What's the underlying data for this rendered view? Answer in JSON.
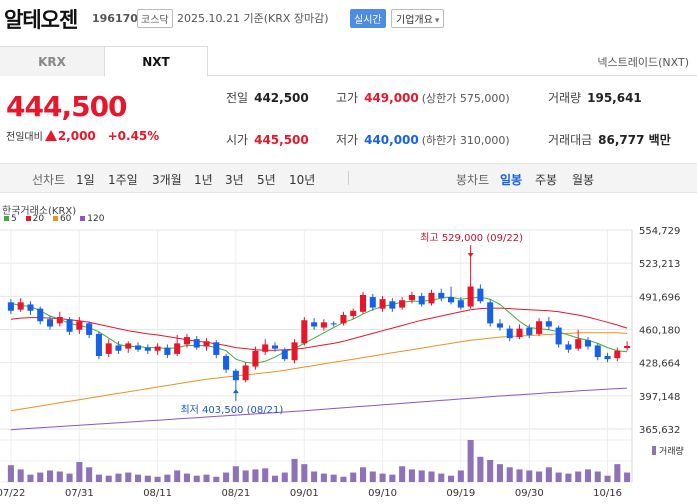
{
  "header": {
    "name": "알테오젠",
    "code": "196170",
    "market": "코스닥",
    "date_text": "2025.10.21 기준(KRX 장마감)",
    "realtime": "실시간",
    "company_info": "기업개요"
  },
  "tabs": {
    "krx": "KRX",
    "nxt": "NXT",
    "nxt_link": "넥스트레이드(NXT)"
  },
  "price": {
    "current": "444,500",
    "prev_label": "전일대비",
    "change": "2,000",
    "change_pct": "+0.45%"
  },
  "stats": {
    "prev": {
      "label": "전일",
      "value": "442,500"
    },
    "high": {
      "label": "고가",
      "value": "449,000",
      "note": "(상한가 575,000)"
    },
    "volume": {
      "label": "거래량",
      "value": "195,641"
    },
    "open": {
      "label": "시가",
      "value": "445,500"
    },
    "low": {
      "label": "저가",
      "value": "440,000",
      "note": "(하한가 310,000)"
    },
    "amount": {
      "label": "거래대금",
      "value": "86,777 백만"
    }
  },
  "period_bar": {
    "left_label": "선차트",
    "left_items": [
      "1일",
      "1주일",
      "3개월",
      "1년",
      "3년",
      "5년",
      "10년"
    ],
    "right_label": "봉차트",
    "right_items": [
      "일봉",
      "주봉",
      "월봉"
    ],
    "active": "일봉"
  },
  "colors": {
    "up": "#e8162b",
    "down": "#1761e6",
    "ma5": "#3fae3f",
    "ma20": "#e8162b",
    "ma60": "#f0901e",
    "ma120": "#8e54c4",
    "volume": "#8e72b8"
  },
  "chart_data": {
    "type": "candlestick",
    "title": "한국거래소(KRX)",
    "legend": [
      {
        "name": "5",
        "color": "#3fae3f"
      },
      {
        "name": "20",
        "color": "#e8162b"
      },
      {
        "name": "60",
        "color": "#f0901e"
      },
      {
        "name": "120",
        "color": "#8e54c4"
      }
    ],
    "y_ticks": [
      554729,
      523213,
      491696,
      460180,
      428664,
      397148,
      365632
    ],
    "y_tick_labels": [
      "554,729",
      "523,213",
      "491,696",
      "460,180",
      "428,664",
      "397,148",
      "365,632"
    ],
    "ylim": [
      365632,
      554729
    ],
    "x_ticks": [
      {
        "index": 0,
        "label": "07/22"
      },
      {
        "index": 7,
        "label": "07/31"
      },
      {
        "index": 15,
        "label": "08/11"
      },
      {
        "index": 23,
        "label": "08/21"
      },
      {
        "index": 30,
        "label": "09/01"
      },
      {
        "index": 38,
        "label": "09/10"
      },
      {
        "index": 46,
        "label": "09/19"
      },
      {
        "index": 53,
        "label": "09/30"
      },
      {
        "index": 61,
        "label": "10/16"
      }
    ],
    "annotations": {
      "high": {
        "text": "최고 529,000 (09/22)",
        "value": 529000,
        "index": 47
      },
      "low": {
        "text": "최저 403,500 (08/21)",
        "value": 403500,
        "index": 23
      }
    },
    "volume_label": "거래량",
    "candles": [
      [
        486000,
        478000,
        489000,
        475000
      ],
      [
        479000,
        486000,
        490000,
        477000
      ],
      [
        484000,
        478000,
        487000,
        474000
      ],
      [
        480000,
        468000,
        482000,
        465000
      ],
      [
        470000,
        463000,
        473000,
        460000
      ],
      [
        466000,
        472000,
        477000,
        463000
      ],
      [
        470000,
        458000,
        472000,
        455000
      ],
      [
        460000,
        468000,
        472000,
        456000
      ],
      [
        466000,
        455000,
        468000,
        452000
      ],
      [
        456000,
        435000,
        458000,
        432000
      ],
      [
        437000,
        447000,
        451000,
        434000
      ],
      [
        445000,
        440000,
        449000,
        437000
      ],
      [
        442000,
        447000,
        449000,
        438000
      ],
      [
        445000,
        441000,
        448000,
        439000
      ],
      [
        443000,
        440000,
        446000,
        437000
      ],
      [
        440000,
        444000,
        447000,
        436000
      ],
      [
        443000,
        436000,
        446000,
        433000
      ],
      [
        437000,
        447000,
        455000,
        435000
      ],
      [
        446000,
        453000,
        456000,
        443000
      ],
      [
        451000,
        443000,
        454000,
        441000
      ],
      [
        444000,
        449000,
        452000,
        440000
      ],
      [
        448000,
        436000,
        450000,
        433000
      ],
      [
        435000,
        422000,
        437000,
        419000
      ],
      [
        421000,
        412000,
        423000,
        403500
      ],
      [
        412000,
        426000,
        429000,
        410000
      ],
      [
        425000,
        440000,
        444000,
        422000
      ],
      [
        439000,
        446000,
        451000,
        436000
      ],
      [
        445000,
        442000,
        448000,
        439000
      ],
      [
        441000,
        432000,
        443000,
        430000
      ],
      [
        431000,
        448000,
        451000,
        428000
      ],
      [
        447000,
        469000,
        472000,
        445000
      ],
      [
        467000,
        463000,
        471000,
        460000
      ],
      [
        462000,
        467000,
        470000,
        459000
      ],
      [
        466000,
        465000,
        468000,
        463000
      ],
      [
        466000,
        474000,
        477000,
        464000
      ],
      [
        473000,
        478000,
        480000,
        470000
      ],
      [
        477000,
        493000,
        496000,
        475000
      ],
      [
        491000,
        481000,
        494000,
        478000
      ],
      [
        480000,
        489000,
        492000,
        477000
      ],
      [
        487000,
        480000,
        490000,
        477000
      ],
      [
        481000,
        488000,
        491000,
        479000
      ],
      [
        488000,
        493000,
        496000,
        485000
      ],
      [
        492000,
        484000,
        495000,
        482000
      ],
      [
        485000,
        495000,
        498000,
        483000
      ],
      [
        495000,
        490000,
        499000,
        487000
      ],
      [
        491000,
        486000,
        501000,
        484000
      ],
      [
        488000,
        481000,
        491000,
        479000
      ],
      [
        482000,
        501000,
        529000,
        480000
      ],
      [
        499000,
        487000,
        503000,
        485000
      ],
      [
        486000,
        466000,
        489000,
        463000
      ],
      [
        466000,
        462000,
        470000,
        459000
      ],
      [
        461000,
        452000,
        464000,
        449000
      ],
      [
        453000,
        461000,
        465000,
        451000
      ],
      [
        462000,
        455000,
        465000,
        452000
      ],
      [
        456000,
        468000,
        471000,
        454000
      ],
      [
        468000,
        463000,
        472000,
        460000
      ],
      [
        462000,
        446000,
        464000,
        443000
      ],
      [
        446000,
        441000,
        449000,
        438000
      ],
      [
        442000,
        451000,
        460000,
        440000
      ],
      [
        450000,
        444000,
        453000,
        441000
      ],
      [
        445000,
        434000,
        447000,
        431000
      ],
      [
        435000,
        432000,
        438000,
        429000
      ],
      [
        433000,
        440000,
        443000,
        430000
      ],
      [
        442500,
        444500,
        449000,
        440000
      ]
    ],
    "volumes": [
      32,
      24,
      14,
      18,
      22,
      20,
      16,
      38,
      28,
      14,
      12,
      16,
      18,
      14,
      12,
      10,
      14,
      22,
      16,
      12,
      14,
      10,
      18,
      30,
      22,
      24,
      26,
      12,
      18,
      44,
      34,
      20,
      16,
      14,
      10,
      18,
      28,
      20,
      16,
      14,
      30,
      24,
      22,
      20,
      16,
      12,
      22,
      80,
      48,
      42,
      34,
      28,
      24,
      22,
      20,
      28,
      18,
      16,
      20,
      24,
      20,
      12,
      34,
      18
    ],
    "ma": {
      "ma5": [
        485000,
        483000,
        482000,
        478000,
        473000,
        470000,
        466000,
        464000,
        462000,
        458000,
        452000,
        446000,
        444000,
        444000,
        443000,
        443000,
        442000,
        443000,
        445000,
        445000,
        445000,
        443000,
        440000,
        432000,
        429000,
        428000,
        430000,
        434000,
        439000,
        442000,
        447000,
        452000,
        457000,
        462000,
        467000,
        470000,
        475000,
        479000,
        482000,
        484000,
        486000,
        487000,
        487000,
        488000,
        490000,
        491000,
        489000,
        490000,
        491000,
        489000,
        484000,
        476000,
        468000,
        462000,
        461000,
        460000,
        458000,
        455000,
        452000,
        450000,
        447000,
        443000,
        440000,
        439000
      ],
      "ma20": [
        470000,
        471000,
        471500,
        471500,
        471000,
        470500,
        469500,
        468500,
        467000,
        465000,
        463000,
        461000,
        459000,
        457500,
        456000,
        455000,
        453500,
        452000,
        450500,
        449000,
        448000,
        446500,
        445000,
        443000,
        442000,
        441000,
        440500,
        440500,
        441000,
        441500,
        442500,
        444000,
        445500,
        447000,
        449000,
        451500,
        454000,
        456500,
        459000,
        461500,
        464000,
        466500,
        469000,
        471000,
        473000,
        475000,
        477000,
        479000,
        480000,
        480500,
        480500,
        480000,
        479500,
        479000,
        478500,
        478000,
        477000,
        475500,
        474000,
        472000,
        469500,
        467000,
        464500,
        461500
      ],
      "ma60": [
        383000,
        384500,
        386000,
        387500,
        389000,
        390500,
        392000,
        393500,
        395000,
        396500,
        398000,
        399500,
        401000,
        402500,
        404000,
        405500,
        407000,
        408500,
        410000,
        411500,
        413000,
        414000,
        415000,
        416000,
        417000,
        418000,
        419000,
        420000,
        421500,
        423000,
        424500,
        426000,
        427500,
        429000,
        430500,
        432000,
        433500,
        435000,
        436500,
        438000,
        439500,
        441000,
        442500,
        444000,
        445500,
        447000,
        448500,
        450000,
        451000,
        452000,
        453000,
        453500,
        454000,
        454500,
        455000,
        455500,
        456000,
        456500,
        457000,
        457000,
        457000,
        457000,
        457000,
        456500
      ],
      "ma120": [
        365000,
        365600,
        366200,
        366800,
        367400,
        368000,
        368600,
        369200,
        369800,
        370400,
        371000,
        371600,
        372200,
        372800,
        373400,
        374000,
        374600,
        375200,
        375800,
        376400,
        377000,
        377600,
        378200,
        378800,
        379400,
        380000,
        380600,
        381200,
        381800,
        382400,
        383000,
        383700,
        384400,
        385100,
        385800,
        386500,
        387200,
        387900,
        388600,
        389300,
        390000,
        390700,
        391400,
        392100,
        392800,
        393500,
        394200,
        394900,
        395600,
        396300,
        397000,
        397600,
        398200,
        398800,
        399400,
        400000,
        400600,
        401200,
        401800,
        402400,
        403000,
        403500,
        404000,
        404500
      ]
    }
  }
}
